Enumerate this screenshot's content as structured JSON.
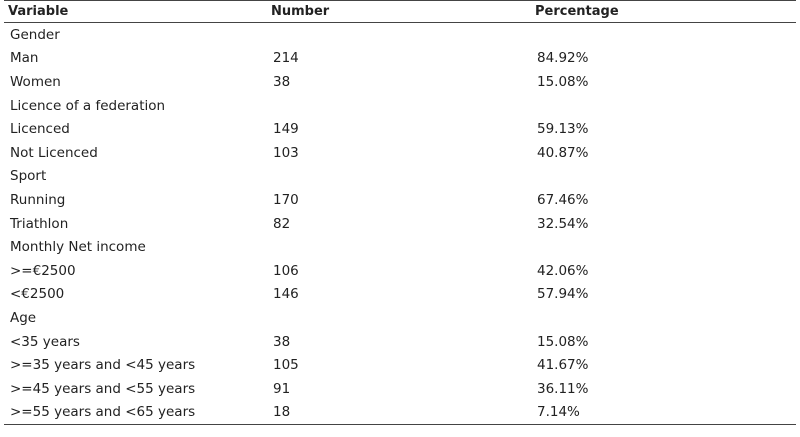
{
  "table": {
    "headers": [
      "Variable",
      "Number",
      "Percentage"
    ],
    "rows": [
      {
        "variable": "Gender",
        "number": "",
        "percentage": ""
      },
      {
        "variable": "Man",
        "number": "214",
        "percentage": "84.92%"
      },
      {
        "variable": "Women",
        "number": "38",
        "percentage": "15.08%"
      },
      {
        "variable": "Licence of a federation",
        "number": "",
        "percentage": ""
      },
      {
        "variable": "Licenced",
        "number": "149",
        "percentage": "59.13%"
      },
      {
        "variable": "Not Licenced",
        "number": "103",
        "percentage": "40.87%"
      },
      {
        "variable": "Sport",
        "number": "",
        "percentage": ""
      },
      {
        "variable": "Running",
        "number": "170",
        "percentage": "67.46%"
      },
      {
        "variable": "Triathlon",
        "number": "82",
        "percentage": "32.54%"
      },
      {
        "variable": "Monthly Net income",
        "number": "",
        "percentage": ""
      },
      {
        "variable": ">=€2500",
        "number": "106",
        "percentage": "42.06%"
      },
      {
        "variable": "<€2500",
        "number": "146",
        "percentage": "57.94%"
      },
      {
        "variable": "Age",
        "number": "",
        "percentage": ""
      },
      {
        "variable": "<35 years",
        "number": "38",
        "percentage": "15.08%"
      },
      {
        "variable": ">=35 years and <45 years",
        "number": "105",
        "percentage": "41.67%"
      },
      {
        "variable": ">=45 years and <55 years",
        "number": "91",
        "percentage": "36.11%"
      },
      {
        "variable": ">=55 years and <65 years",
        "number": "18",
        "percentage": "7.14%"
      }
    ]
  }
}
